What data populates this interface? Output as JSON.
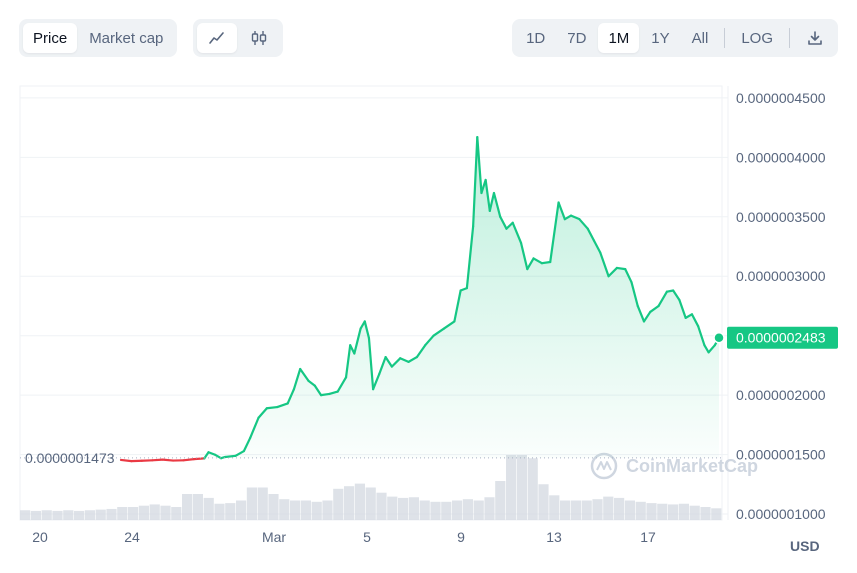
{
  "toolbar": {
    "metric_tabs": [
      "Price",
      "Market cap"
    ],
    "active_metric": "Price",
    "style_buttons": [
      {
        "icon": "line-chart-icon",
        "active": true
      },
      {
        "icon": "candlestick-chart-icon",
        "active": false
      }
    ],
    "ranges": [
      "1D",
      "7D",
      "1M",
      "1Y",
      "All"
    ],
    "active_range": "1M",
    "log_label": "LOG",
    "download_icon": "download-icon"
  },
  "chart_data": {
    "type": "area",
    "x_tick_labels": [
      "20",
      "24",
      "Mar",
      "5",
      "9",
      "13",
      "17"
    ],
    "y_tick_labels": [
      "0.0000004500",
      "0.0000004000",
      "0.0000003500",
      "0.0000003000",
      "0.0000002500",
      "0.0000002000",
      "0.0000001500",
      "0.0000001000"
    ],
    "ylim": [
      9.5e-08,
      4.6e-07
    ],
    "baseline_label": "0.0000001473",
    "baseline_value": 1.473e-07,
    "current_label": "0.0000002483",
    "current_value": 2.483e-07,
    "x_range_days": [
      0,
      31
    ],
    "price_points": [
      [
        0.0,
        1.455e-07
      ],
      [
        0.5,
        1.445e-07
      ],
      [
        1.0,
        1.448e-07
      ],
      [
        1.5,
        1.452e-07
      ],
      [
        2.0,
        1.458e-07
      ],
      [
        2.5,
        1.45e-07
      ],
      [
        3.0,
        1.452e-07
      ],
      [
        3.5,
        1.462e-07
      ],
      [
        4.0,
        1.468e-07
      ],
      [
        4.2,
        1.52e-07
      ],
      [
        4.5,
        1.5e-07
      ],
      [
        4.8,
        1.47e-07
      ],
      [
        5.0,
        1.48e-07
      ],
      [
        5.5,
        1.49e-07
      ],
      [
        5.9,
        1.53e-07
      ],
      [
        6.2,
        1.64e-07
      ],
      [
        6.6,
        1.81e-07
      ],
      [
        7.0,
        1.89e-07
      ],
      [
        7.5,
        1.9e-07
      ],
      [
        8.0,
        1.93e-07
      ],
      [
        8.3,
        2.05e-07
      ],
      [
        8.6,
        2.22e-07
      ],
      [
        9.0,
        2.12e-07
      ],
      [
        9.3,
        2.08e-07
      ],
      [
        9.6,
        2e-07
      ],
      [
        10.0,
        2.01e-07
      ],
      [
        10.4,
        2.03e-07
      ],
      [
        10.8,
        2.15e-07
      ],
      [
        11.0,
        2.42e-07
      ],
      [
        11.2,
        2.35e-07
      ],
      [
        11.5,
        2.56e-07
      ],
      [
        11.7,
        2.62e-07
      ],
      [
        11.9,
        2.48e-07
      ],
      [
        12.1,
        2.05e-07
      ],
      [
        12.4,
        2.18e-07
      ],
      [
        12.7,
        2.32e-07
      ],
      [
        13.0,
        2.24e-07
      ],
      [
        13.4,
        2.31e-07
      ],
      [
        13.8,
        2.28e-07
      ],
      [
        14.2,
        2.32e-07
      ],
      [
        14.6,
        2.42e-07
      ],
      [
        15.0,
        2.5e-07
      ],
      [
        15.5,
        2.56e-07
      ],
      [
        16.0,
        2.62e-07
      ],
      [
        16.3,
        2.88e-07
      ],
      [
        16.6,
        2.9e-07
      ],
      [
        16.9,
        3.42e-07
      ],
      [
        17.1,
        4.17e-07
      ],
      [
        17.3,
        3.7e-07
      ],
      [
        17.5,
        3.81e-07
      ],
      [
        17.7,
        3.55e-07
      ],
      [
        17.9,
        3.7e-07
      ],
      [
        18.2,
        3.5e-07
      ],
      [
        18.5,
        3.4e-07
      ],
      [
        18.8,
        3.45e-07
      ],
      [
        19.2,
        3.28e-07
      ],
      [
        19.5,
        3.06e-07
      ],
      [
        19.8,
        3.15e-07
      ],
      [
        20.2,
        3.11e-07
      ],
      [
        20.6,
        3.12e-07
      ],
      [
        21.0,
        3.62e-07
      ],
      [
        21.3,
        3.48e-07
      ],
      [
        21.6,
        3.51e-07
      ],
      [
        22.0,
        3.48e-07
      ],
      [
        22.4,
        3.4e-07
      ],
      [
        22.7,
        3.3e-07
      ],
      [
        23.0,
        3.2e-07
      ],
      [
        23.4,
        3e-07
      ],
      [
        23.8,
        3.07e-07
      ],
      [
        24.2,
        3.06e-07
      ],
      [
        24.5,
        2.95e-07
      ],
      [
        24.8,
        2.75e-07
      ],
      [
        25.1,
        2.62e-07
      ],
      [
        25.4,
        2.7e-07
      ],
      [
        25.8,
        2.75e-07
      ],
      [
        26.2,
        2.87e-07
      ],
      [
        26.5,
        2.88e-07
      ],
      [
        26.8,
        2.8e-07
      ],
      [
        27.1,
        2.65e-07
      ],
      [
        27.4,
        2.68e-07
      ],
      [
        27.7,
        2.58e-07
      ],
      [
        28.0,
        2.42e-07
      ],
      [
        28.2,
        2.36e-07
      ],
      [
        28.5,
        2.42e-07
      ],
      [
        28.7,
        2.483e-07
      ]
    ],
    "volume_relative": [
      0.15,
      0.14,
      0.15,
      0.14,
      0.15,
      0.14,
      0.15,
      0.16,
      0.17,
      0.2,
      0.2,
      0.22,
      0.24,
      0.22,
      0.2,
      0.4,
      0.4,
      0.34,
      0.25,
      0.26,
      0.3,
      0.5,
      0.5,
      0.4,
      0.32,
      0.3,
      0.3,
      0.28,
      0.3,
      0.48,
      0.52,
      0.56,
      0.5,
      0.42,
      0.36,
      0.34,
      0.35,
      0.3,
      0.28,
      0.28,
      0.3,
      0.32,
      0.3,
      0.35,
      0.6,
      1.0,
      1.0,
      0.95,
      0.55,
      0.38,
      0.3,
      0.3,
      0.3,
      0.32,
      0.36,
      0.34,
      0.3,
      0.28,
      0.26,
      0.25,
      0.24,
      0.25,
      0.22,
      0.2,
      0.18
    ],
    "watermark": "CoinMarketCap",
    "currency": "USD",
    "colors": {
      "up": "#16c784",
      "down": "#ea3943",
      "grid": "#eff2f5",
      "volume": "#d3d8e0",
      "current_badge": "#16c784"
    }
  }
}
